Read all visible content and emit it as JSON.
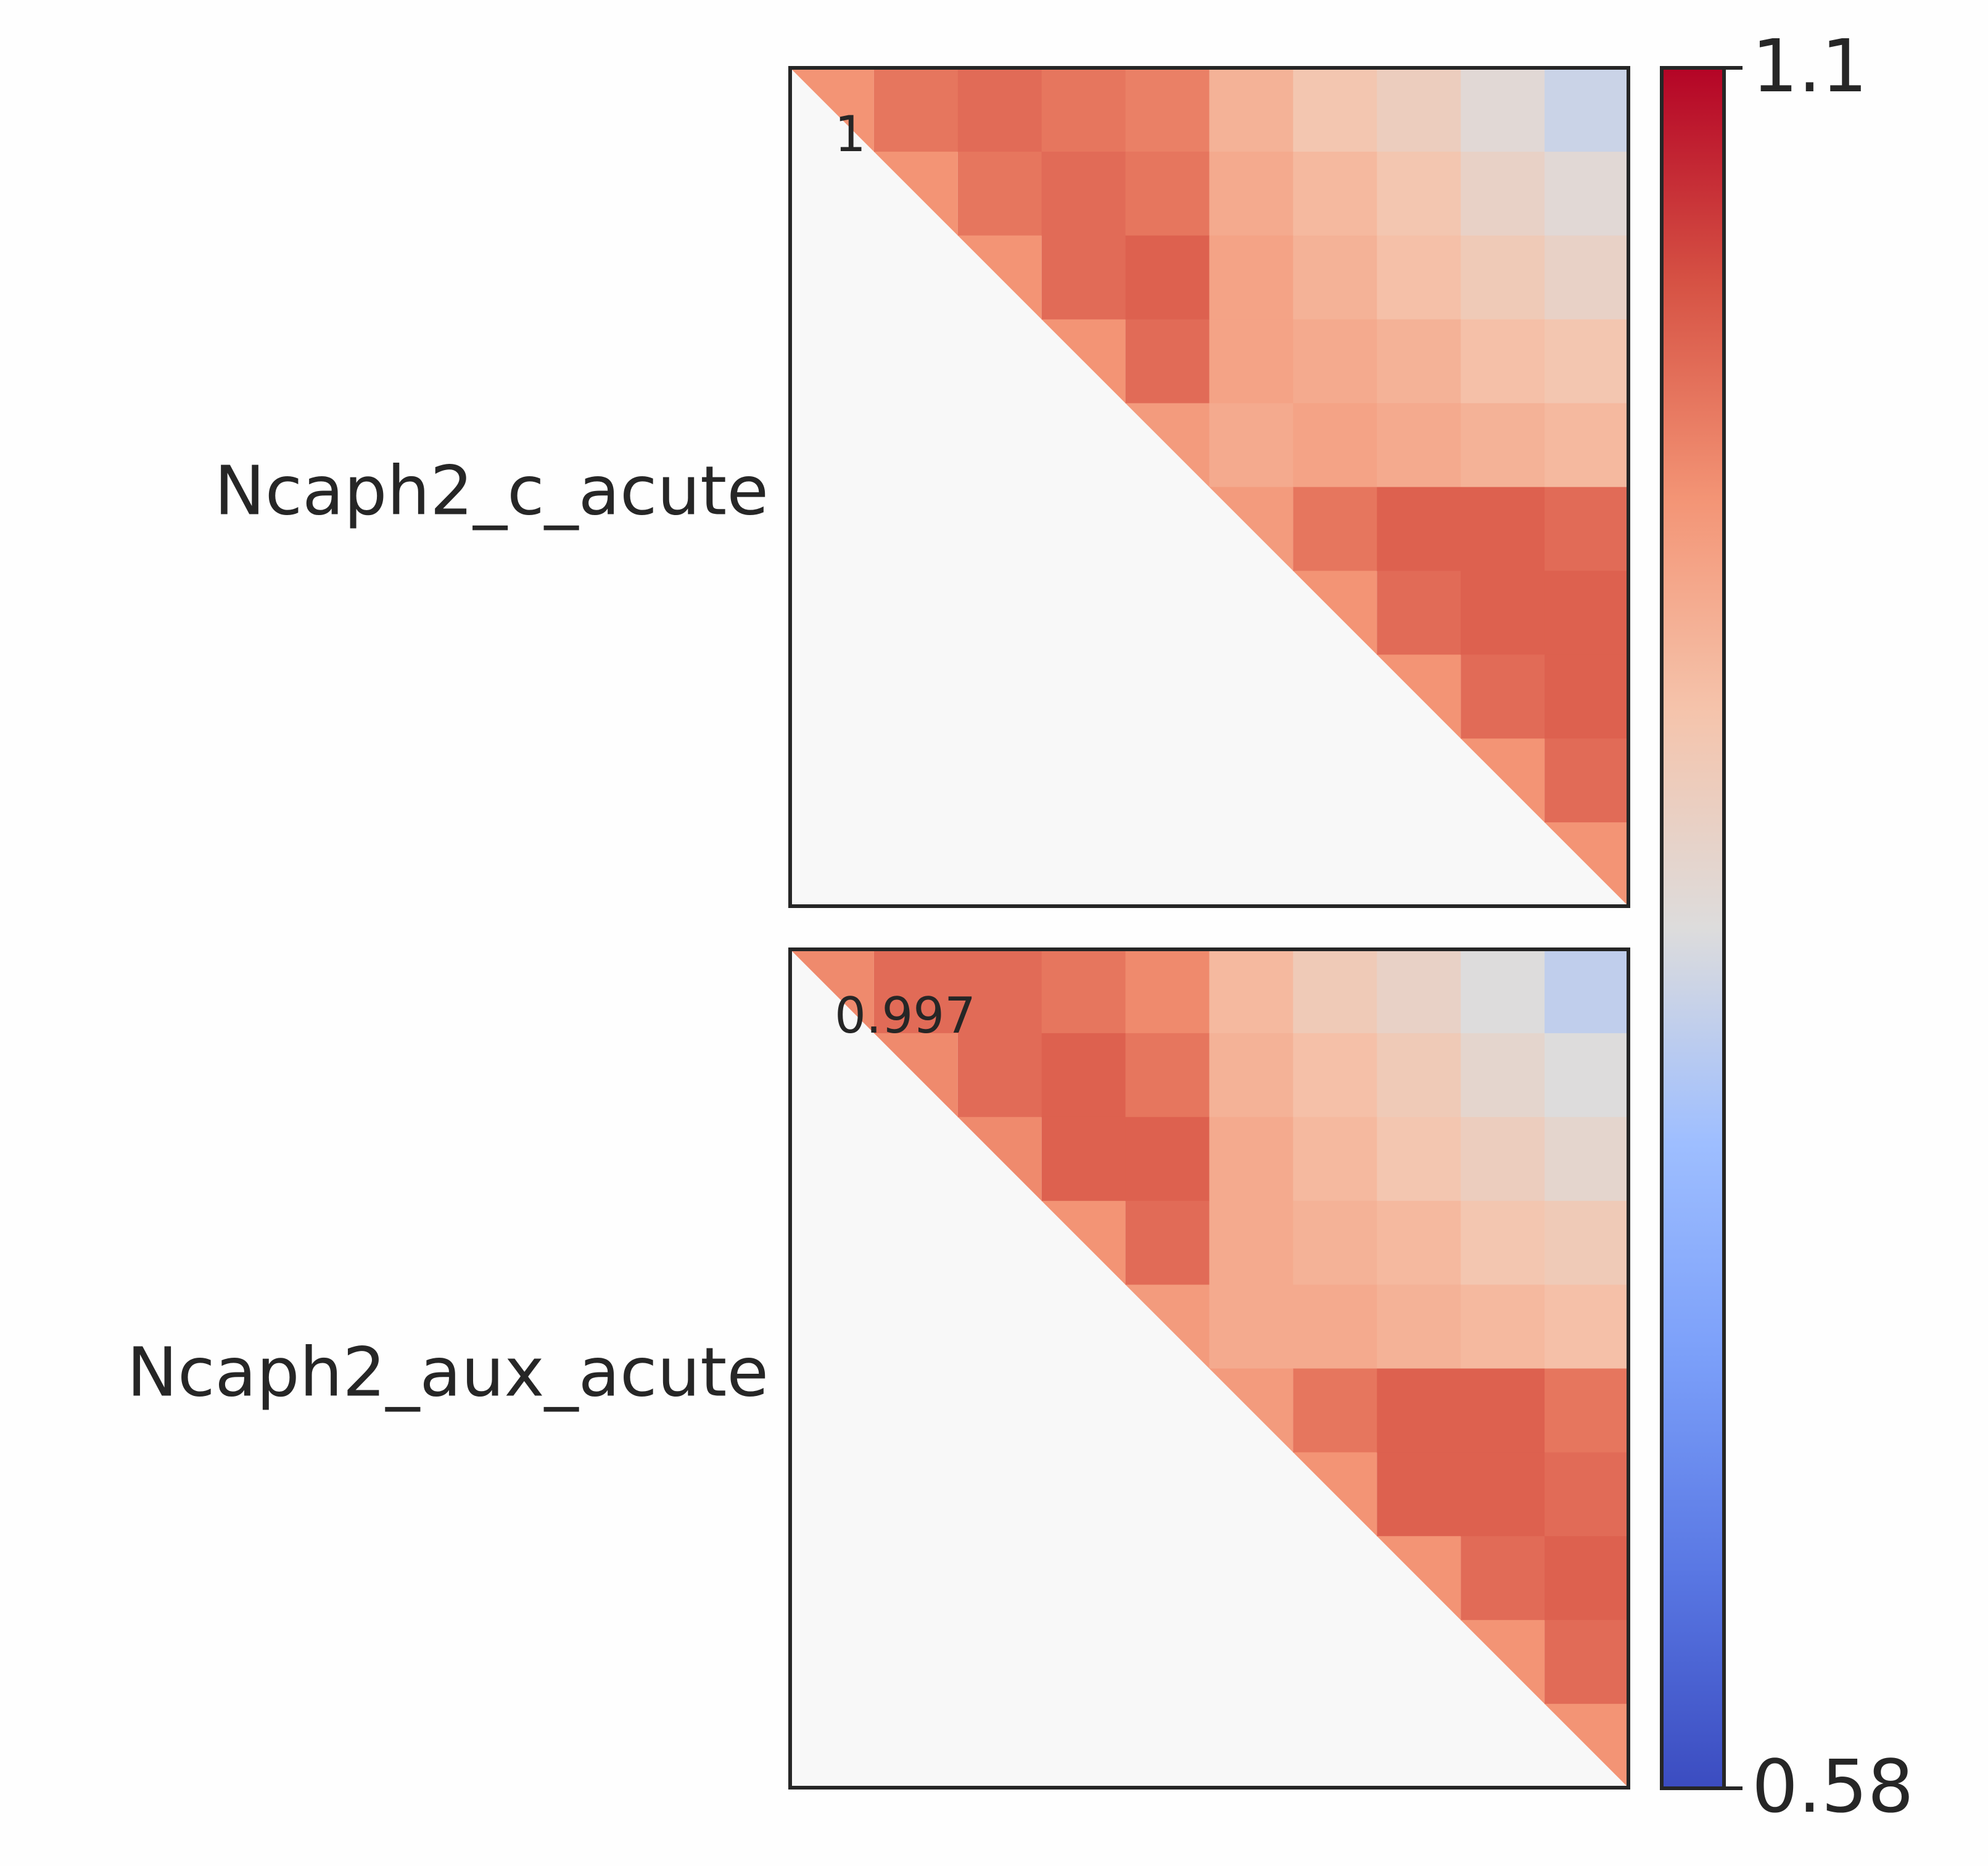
{
  "chart_data": {
    "type": "heatmap",
    "cmap": "coolwarm",
    "panels": [
      {
        "label": "Ncaph2_c_acute",
        "annotation": 1,
        "values": [
          [
            0.97,
            1.0,
            1.01,
            1.0,
            0.99,
            0.93,
            0.9,
            0.88,
            0.85,
            0.82
          ],
          [
            null,
            0.97,
            1.0,
            1.01,
            1.0,
            0.94,
            0.92,
            0.9,
            0.87,
            0.85
          ],
          [
            null,
            null,
            0.97,
            1.01,
            1.02,
            0.95,
            0.93,
            0.91,
            0.89,
            0.87
          ],
          [
            null,
            null,
            null,
            0.97,
            1.01,
            0.95,
            0.94,
            0.93,
            0.91,
            0.9
          ],
          [
            null,
            null,
            null,
            null,
            0.96,
            0.94,
            0.95,
            0.94,
            0.93,
            0.92
          ],
          [
            null,
            null,
            null,
            null,
            null,
            0.96,
            1.0,
            1.02,
            1.02,
            1.01
          ],
          [
            null,
            null,
            null,
            null,
            null,
            null,
            0.97,
            1.01,
            1.02,
            1.02
          ],
          [
            null,
            null,
            null,
            null,
            null,
            null,
            null,
            0.97,
            1.01,
            1.02
          ],
          [
            null,
            null,
            null,
            null,
            null,
            null,
            null,
            null,
            0.97,
            1.01
          ],
          [
            null,
            null,
            null,
            null,
            null,
            null,
            null,
            null,
            null,
            0.97
          ]
        ]
      },
      {
        "label": "Ncaph2_aux_acute",
        "annotation": 0.997,
        "values": [
          [
            0.98,
            1.01,
            1.01,
            1.0,
            0.98,
            0.92,
            0.89,
            0.87,
            0.84,
            0.81
          ],
          [
            null,
            0.98,
            1.01,
            1.02,
            1.0,
            0.93,
            0.91,
            0.89,
            0.86,
            0.84
          ],
          [
            null,
            null,
            0.98,
            1.02,
            1.02,
            0.94,
            0.92,
            0.9,
            0.88,
            0.86
          ],
          [
            null,
            null,
            null,
            0.97,
            1.01,
            0.94,
            0.93,
            0.92,
            0.9,
            0.89
          ],
          [
            null,
            null,
            null,
            null,
            0.96,
            0.94,
            0.94,
            0.93,
            0.92,
            0.91
          ],
          [
            null,
            null,
            null,
            null,
            null,
            0.96,
            1.0,
            1.02,
            1.02,
            1.0
          ],
          [
            null,
            null,
            null,
            null,
            null,
            null,
            0.97,
            1.02,
            1.02,
            1.01
          ],
          [
            null,
            null,
            null,
            null,
            null,
            null,
            null,
            0.97,
            1.01,
            1.02
          ],
          [
            null,
            null,
            null,
            null,
            null,
            null,
            null,
            null,
            0.97,
            1.01
          ],
          [
            null,
            null,
            null,
            null,
            null,
            null,
            null,
            null,
            null,
            0.97
          ]
        ]
      }
    ],
    "clim": [
      0.58,
      1.1
    ],
    "cticks": [
      0.58,
      1.1
    ]
  }
}
